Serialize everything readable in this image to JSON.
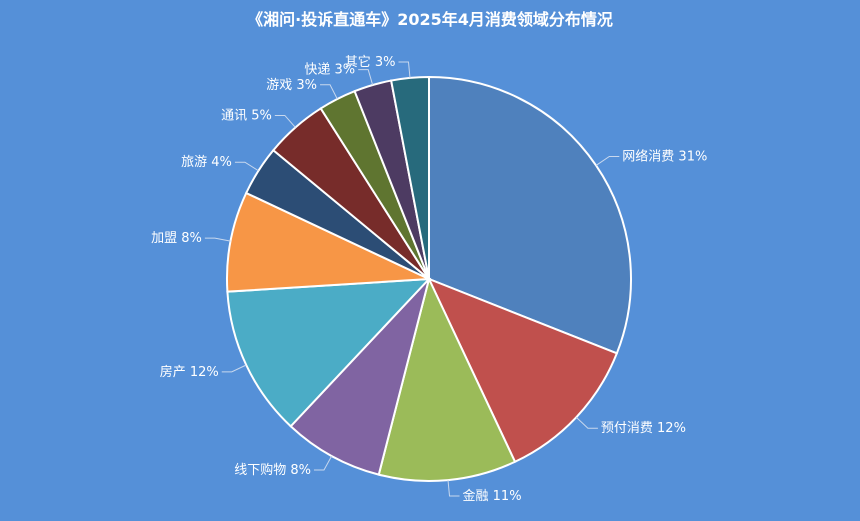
{
  "chart_data": {
    "type": "pie",
    "title": "《湘问·投诉直通车》2025年4月消费领域分布情况",
    "slices": [
      {
        "label": "网络消费",
        "value": 31,
        "color": "#4f81bd"
      },
      {
        "label": "预付消费",
        "value": 12,
        "color": "#c0504d"
      },
      {
        "label": "金融",
        "value": 11,
        "color": "#9bbb59"
      },
      {
        "label": "线下购物",
        "value": 8,
        "color": "#8064a2"
      },
      {
        "label": "房产",
        "value": 12,
        "color": "#4bacc6"
      },
      {
        "label": "加盟",
        "value": 8,
        "color": "#f79646"
      },
      {
        "label": "旅游",
        "value": 4,
        "color": "#2c4d75"
      },
      {
        "label": "通讯",
        "value": 5,
        "color": "#772c2a"
      },
      {
        "label": "游戏",
        "value": 3,
        "color": "#5f7530"
      },
      {
        "label": "快递",
        "value": 3,
        "color": "#4d3b62"
      },
      {
        "label": "其它",
        "value": 3,
        "color": "#276a7c"
      }
    ],
    "label_format": "{label} {value}%",
    "legend": "none"
  }
}
